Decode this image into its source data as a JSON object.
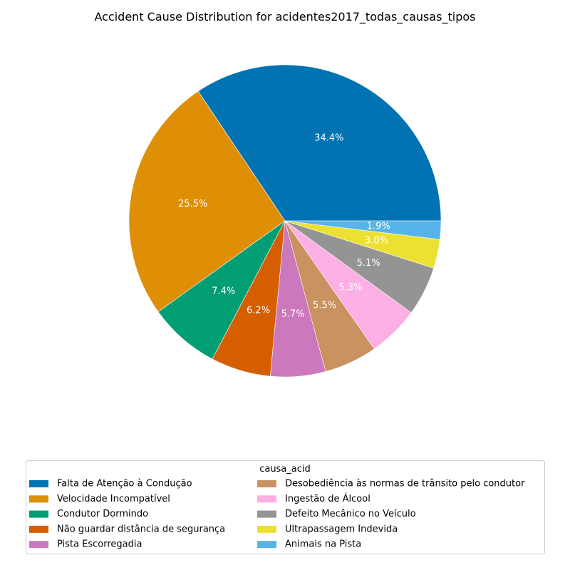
{
  "chart_data": {
    "type": "pie",
    "title": "Accident Cause Distribution for acidentes2017_todas_causas_tipos",
    "legend_title": "causa_acid",
    "legend_placement": "bottom",
    "start_angle_deg": 0,
    "direction": "counterclockwise",
    "slices": [
      {
        "label": "Falta de Atenção à Condução",
        "value": 34.4,
        "pct_label": "34.4%",
        "color": "#0173b2"
      },
      {
        "label": "Velocidade Incompatível",
        "value": 25.5,
        "pct_label": "25.5%",
        "color": "#de8f05"
      },
      {
        "label": "Condutor Dormindo",
        "value": 7.4,
        "pct_label": "7.4%",
        "color": "#029e73"
      },
      {
        "label": "Não guardar distância de segurança",
        "value": 6.2,
        "pct_label": "6.2%",
        "color": "#d55e00"
      },
      {
        "label": "Pista Escorregadia",
        "value": 5.7,
        "pct_label": "5.7%",
        "color": "#cc78bc"
      },
      {
        "label": "Desobediência às normas de trânsito pelo condutor",
        "value": 5.5,
        "pct_label": "5.5%",
        "color": "#ca9161"
      },
      {
        "label": "Ingestão de Álcool",
        "value": 5.3,
        "pct_label": "5.3%",
        "color": "#fbafe4"
      },
      {
        "label": "Defeito Mecânico no Veículo",
        "value": 5.1,
        "pct_label": "5.1%",
        "color": "#949494"
      },
      {
        "label": "Ultrapassagem Indevida",
        "value": 3.0,
        "pct_label": "3.0%",
        "color": "#ece133"
      },
      {
        "label": "Animais na Pista",
        "value": 1.9,
        "pct_label": "1.9%",
        "color": "#56b4e9"
      }
    ]
  }
}
